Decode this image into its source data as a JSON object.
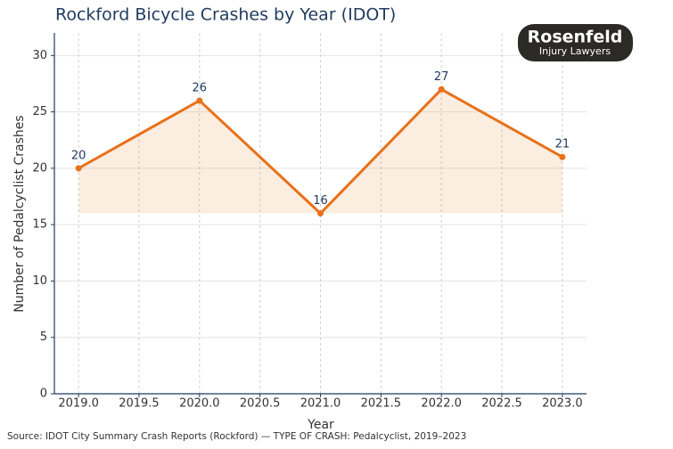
{
  "chart_data": {
    "type": "line",
    "title": "Rockford Bicycle Crashes by Year (IDOT)",
    "x_label": "Year",
    "y_label": "Number of Pedalcyclist Crashes",
    "source": "Source: IDOT City Summary Crash Reports (Rockford) — TYPE OF CRASH: Pedalcyclist, 2019–2023",
    "x": [
      2019,
      2020,
      2021,
      2022,
      2023
    ],
    "series": [
      {
        "name": "Pedalcyclist crashes",
        "color": "#e8711a",
        "values": [
          20,
          26,
          16,
          27,
          21
        ]
      }
    ],
    "xlim": [
      2018.8,
      2023.2
    ],
    "xticks": [
      {
        "value": 2019,
        "label": "2019.0"
      },
      {
        "value": 2019.5,
        "label": "2019.5"
      },
      {
        "value": 2020,
        "label": "2020.0"
      },
      {
        "value": 2020.5,
        "label": "2020.5"
      },
      {
        "value": 2021,
        "label": "2021.0"
      },
      {
        "value": 2021.5,
        "label": "2021.5"
      },
      {
        "value": 2022,
        "label": "2022.0"
      },
      {
        "value": 2022.5,
        "label": "2022.5"
      },
      {
        "value": 2023,
        "label": "2023.0"
      }
    ],
    "ylim": [
      0,
      32
    ],
    "yticks": [
      0,
      5,
      10,
      15,
      20,
      25,
      30
    ],
    "grid": true,
    "fill": true
  },
  "logo": {
    "name": "Rosenfeld",
    "tagline": "Injury Lawyers"
  }
}
